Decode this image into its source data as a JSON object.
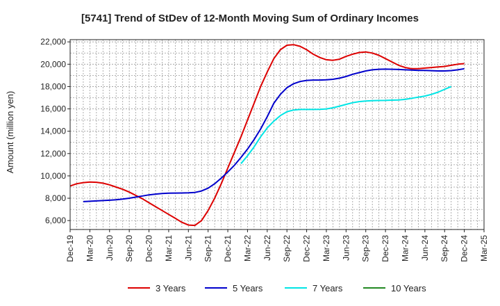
{
  "chart_data": {
    "type": "line",
    "title": "[5741]  Trend of StDev of 12-Month Moving Sum of Ordinary Incomes",
    "xlabel": "",
    "ylabel": "Amount (million yen)",
    "ylim": [
      5200,
      22200
    ],
    "yticks": [
      6000,
      8000,
      10000,
      12000,
      14000,
      16000,
      18000,
      20000,
      22000
    ],
    "ytick_labels": [
      "6,000",
      "8,000",
      "10,000",
      "12,000",
      "14,000",
      "16,000",
      "18,000",
      "20,000",
      "22,000"
    ],
    "x_start": "Dec-19",
    "x_step_months": 1,
    "x_tick_labels": [
      "Dec-19",
      "Mar-20",
      "Jun-20",
      "Sep-20",
      "Dec-20",
      "Mar-21",
      "Jun-21",
      "Sep-21",
      "Dec-21",
      "Mar-22",
      "Jun-22",
      "Sep-22",
      "Dec-22",
      "Mar-23",
      "Jun-23",
      "Sep-23",
      "Dec-23",
      "Mar-24",
      "Jun-24",
      "Sep-24",
      "Dec-24",
      "Mar-25"
    ],
    "x_max_index": 63,
    "grid": true,
    "legend_position": "bottom",
    "series": [
      {
        "name": "3 Years",
        "color": "#dd0000",
        "start_index": 0,
        "values": [
          9100,
          9300,
          9400,
          9450,
          9430,
          9350,
          9200,
          9000,
          8800,
          8550,
          8250,
          7950,
          7600,
          7250,
          6900,
          6550,
          6200,
          5850,
          5600,
          5570,
          6000,
          6900,
          8000,
          9300,
          10700,
          12100,
          13500,
          15000,
          16500,
          18000,
          19300,
          20500,
          21300,
          21700,
          21750,
          21600,
          21300,
          20900,
          20600,
          20400,
          20350,
          20450,
          20700,
          20900,
          21050,
          21100,
          21000,
          20800,
          20500,
          20200,
          19900,
          19700,
          19600,
          19600,
          19650,
          19700,
          19750,
          19800,
          19900,
          20000,
          20050
        ]
      },
      {
        "name": "5 Years",
        "color": "#0000cc",
        "start_index": 2,
        "values": [
          7700,
          7730,
          7760,
          7790,
          7820,
          7860,
          7920,
          8000,
          8100,
          8200,
          8300,
          8370,
          8420,
          8450,
          8460,
          8470,
          8480,
          8520,
          8650,
          8900,
          9300,
          9800,
          10350,
          10950,
          11650,
          12400,
          13250,
          14200,
          15300,
          16500,
          17300,
          17900,
          18250,
          18450,
          18550,
          18580,
          18580,
          18600,
          18650,
          18750,
          18900,
          19100,
          19250,
          19400,
          19500,
          19550,
          19560,
          19550,
          19530,
          19500,
          19470,
          19450,
          19440,
          19420,
          19400,
          19400,
          19430,
          19500,
          19600
        ]
      },
      {
        "name": "7 Years",
        "color": "#00e5e5",
        "start_index": 26,
        "values": [
          11100,
          11800,
          12600,
          13500,
          14300,
          14900,
          15400,
          15750,
          15900,
          15950,
          15950,
          15950,
          15960,
          16000,
          16100,
          16250,
          16400,
          16550,
          16650,
          16700,
          16730,
          16750,
          16760,
          16780,
          16800,
          16850,
          16950,
          17050,
          17150,
          17300,
          17500,
          17750,
          18000
        ]
      },
      {
        "name": "10 Years",
        "color": "#228822",
        "start_index": 0,
        "values": []
      }
    ]
  }
}
